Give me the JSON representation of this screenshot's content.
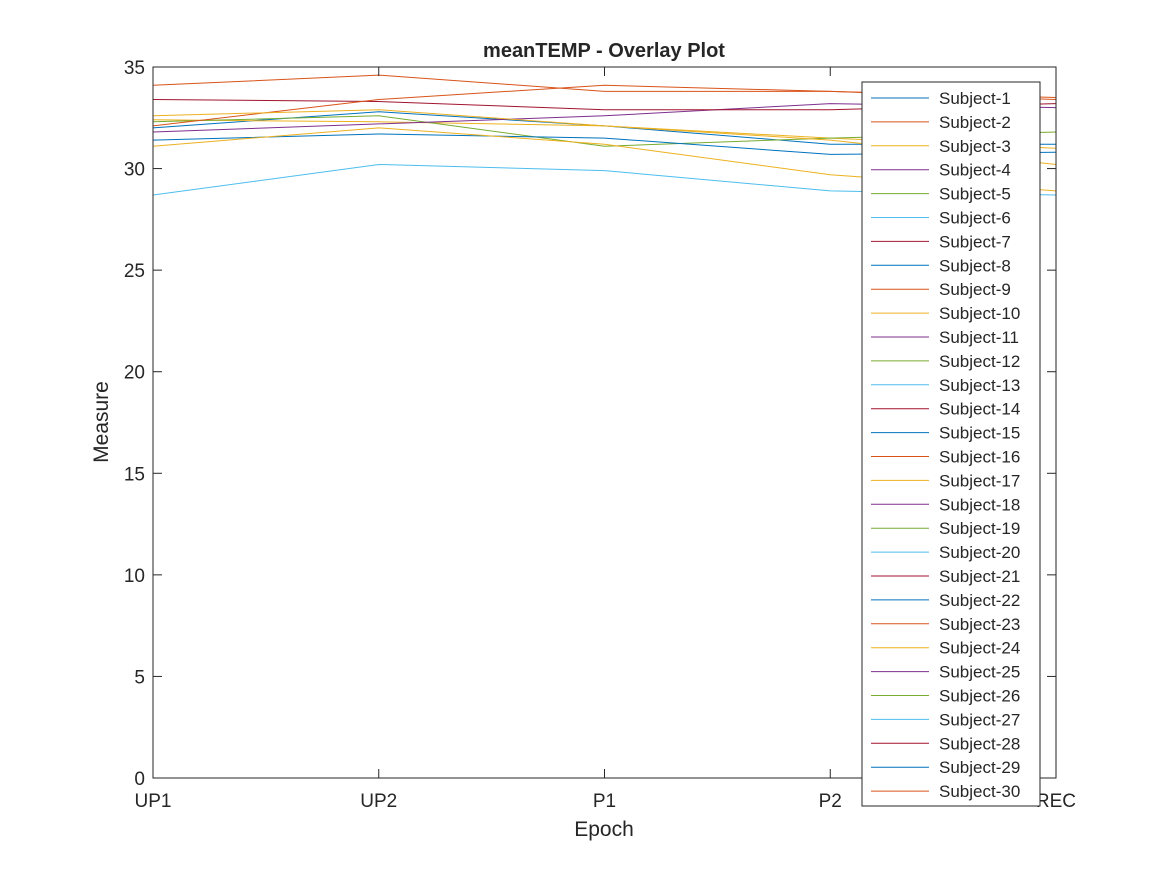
{
  "chart_data": {
    "type": "line",
    "title": "meanTEMP - Overlay Plot",
    "xlabel": "Epoch",
    "ylabel": "Measure",
    "categories": [
      "UP1",
      "UP2",
      "P1",
      "P2",
      "REC"
    ],
    "ylim": [
      0,
      35
    ],
    "yticks": [
      0,
      5,
      10,
      15,
      20,
      25,
      30,
      35
    ],
    "grid": false,
    "legend_position": "right",
    "colors": [
      "#0072BD",
      "#D95319",
      "#EDB120",
      "#7E2F8E",
      "#77AC30",
      "#4DBEEE",
      "#A2142F"
    ],
    "series": [
      {
        "name": "Subject-1",
        "values": [
          32.0,
          32.8,
          32.1,
          31.2,
          31.2
        ]
      },
      {
        "name": "Subject-2",
        "values": [
          0,
          0,
          0,
          0,
          0
        ]
      },
      {
        "name": "Subject-3",
        "values": [
          32.4,
          32.3,
          32.1,
          31.5,
          31.0
        ]
      },
      {
        "name": "Subject-4",
        "values": [
          0,
          0,
          0,
          0,
          0
        ]
      },
      {
        "name": "Subject-5",
        "values": [
          32.3,
          32.6,
          31.1,
          31.5,
          31.8
        ]
      },
      {
        "name": "Subject-6",
        "values": [
          0,
          0,
          0,
          0,
          0
        ]
      },
      {
        "name": "Subject-7",
        "values": [
          0,
          0,
          0,
          0,
          0
        ]
      },
      {
        "name": "Subject-8",
        "values": [
          31.4,
          31.7,
          31.5,
          30.7,
          30.8
        ]
      },
      {
        "name": "Subject-9",
        "values": [
          34.1,
          34.6,
          33.8,
          33.8,
          33.4
        ]
      },
      {
        "name": "Subject-10",
        "values": [
          0,
          0,
          0,
          0,
          0
        ]
      },
      {
        "name": "Subject-11",
        "values": [
          31.8,
          32.2,
          32.6,
          33.2,
          33.0
        ]
      },
      {
        "name": "Subject-12",
        "values": [
          0,
          0,
          0,
          0,
          0
        ]
      },
      {
        "name": "Subject-13",
        "values": [
          28.7,
          30.2,
          29.9,
          28.9,
          28.7
        ]
      },
      {
        "name": "Subject-14",
        "values": [
          33.4,
          33.3,
          32.9,
          32.9,
          33.2
        ]
      },
      {
        "name": "Subject-15",
        "values": [
          0,
          0,
          0,
          0,
          0
        ]
      },
      {
        "name": "Subject-16",
        "values": [
          32.1,
          33.4,
          34.1,
          33.8,
          33.5
        ]
      },
      {
        "name": "Subject-17",
        "values": [
          31.1,
          32.0,
          31.2,
          29.7,
          28.9
        ]
      },
      {
        "name": "Subject-18",
        "values": [
          0,
          0,
          0,
          0,
          0
        ]
      },
      {
        "name": "Subject-19",
        "values": [
          0,
          0,
          0,
          0,
          0
        ]
      },
      {
        "name": "Subject-20",
        "values": [
          0,
          0,
          0,
          0,
          0
        ]
      },
      {
        "name": "Subject-21",
        "values": [
          0,
          0,
          0,
          0,
          0
        ]
      },
      {
        "name": "Subject-22",
        "values": [
          0,
          0,
          0,
          0,
          0
        ]
      },
      {
        "name": "Subject-23",
        "values": [
          0,
          0,
          0,
          0,
          0
        ]
      },
      {
        "name": "Subject-24",
        "values": [
          32.6,
          32.9,
          32.1,
          31.4,
          30.2
        ]
      },
      {
        "name": "Subject-25",
        "values": [
          0,
          0,
          0,
          0,
          0
        ]
      },
      {
        "name": "Subject-26",
        "values": [
          0,
          0,
          0,
          0,
          0
        ]
      },
      {
        "name": "Subject-27",
        "values": [
          0,
          0,
          0,
          0,
          0
        ]
      },
      {
        "name": "Subject-28",
        "values": [
          0,
          0,
          0,
          0,
          0
        ]
      },
      {
        "name": "Subject-29",
        "values": [
          0,
          0,
          0,
          0,
          0
        ]
      },
      {
        "name": "Subject-30",
        "values": [
          0,
          0,
          0,
          0,
          0
        ]
      }
    ]
  }
}
